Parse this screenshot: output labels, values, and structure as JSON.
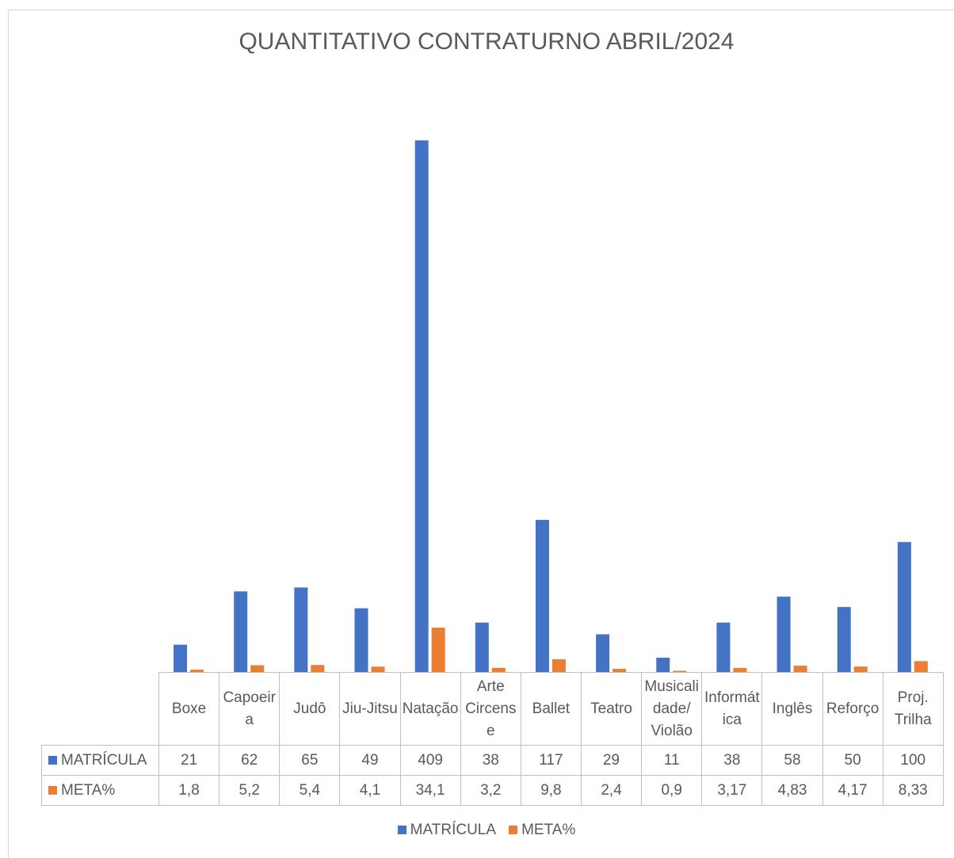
{
  "chart_data": {
    "type": "bar",
    "title": "QUANTITATIVO CONTRATURNO ABRIL/2024",
    "categories": [
      "Boxe",
      "Capoeira",
      "Judô",
      "Jiu-Jitsu",
      "Natação",
      "Arte Circense",
      "Ballet",
      "Teatro",
      "Musicalidade/ Violão",
      "Informática",
      "Inglês",
      "Reforço",
      "Proj. Trilha"
    ],
    "series": [
      {
        "name": "MATRÍCULA",
        "color": "#4472c4",
        "values": [
          21,
          62,
          65,
          49,
          409,
          38,
          117,
          29,
          11,
          38,
          58,
          50,
          100
        ]
      },
      {
        "name": "META%",
        "color": "#ed7d31",
        "values": [
          1.8,
          5.2,
          5.4,
          4.1,
          34.1,
          3.2,
          9.8,
          2.4,
          0.9,
          3.17,
          4.83,
          4.17,
          8.33
        ],
        "value_labels": [
          "1,8",
          "5,2",
          "5,4",
          "4,1",
          "34,1",
          "3,2",
          "9,8",
          "2,4",
          "0,9",
          "3,17",
          "4,83",
          "4,17",
          "8,33"
        ]
      }
    ],
    "ylim": [
      0,
      450
    ],
    "grid": false,
    "legend": "bottom",
    "data_table": true
  }
}
